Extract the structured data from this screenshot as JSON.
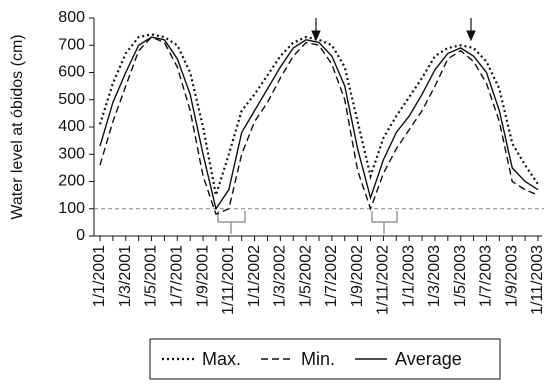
{
  "chart_data": {
    "type": "line",
    "y_label": "Water level at óbidos (cm)",
    "categories": [
      "1/1/2001",
      null,
      "1/3/2001",
      null,
      "1/5/2001",
      null,
      "1/7/2001",
      null,
      "1/9/2001",
      null,
      "1/11/2001",
      null,
      "1/1/2002",
      null,
      "1/3/2002",
      null,
      "1/5/2002",
      null,
      "1/7/2002",
      null,
      "1/9/2002",
      null,
      "1/11/2002",
      null,
      "1/1/2003",
      null,
      "1/3/2003",
      null,
      "1/5/2003",
      null,
      "1/7/2003",
      null,
      "1/9/2003",
      null,
      "1/11/2003"
    ],
    "series": [
      {
        "name": "Max.",
        "color": "#111111",
        "line_style": "dotted",
        "values": [
          410,
          560,
          670,
          730,
          740,
          730,
          700,
          600,
          400,
          150,
          300,
          460,
          520,
          590,
          660,
          710,
          730,
          720,
          700,
          620,
          420,
          220,
          360,
          440,
          510,
          580,
          660,
          690,
          700,
          690,
          640,
          540,
          340,
          260,
          190
        ]
      },
      {
        "name": "Min.",
        "color": "#111111",
        "line_style": "dashed",
        "values": [
          260,
          420,
          550,
          680,
          730,
          710,
          620,
          460,
          220,
          80,
          100,
          300,
          420,
          490,
          580,
          660,
          710,
          700,
          630,
          500,
          240,
          100,
          230,
          320,
          390,
          460,
          550,
          650,
          680,
          640,
          560,
          420,
          200,
          170,
          150
        ]
      },
      {
        "name": "Average",
        "color": "#111111",
        "line_style": "solid",
        "values": [
          330,
          490,
          600,
          700,
          730,
          720,
          650,
          520,
          300,
          100,
          170,
          380,
          460,
          540,
          620,
          690,
          720,
          710,
          660,
          550,
          320,
          140,
          280,
          380,
          440,
          520,
          610,
          670,
          690,
          660,
          600,
          460,
          250,
          200,
          170
        ]
      }
    ],
    "reference_line": 100,
    "ylim": [
      0,
      800
    ],
    "yticks": [
      0,
      100,
      200,
      300,
      400,
      500,
      600,
      700,
      800
    ],
    "legend": "bottom"
  }
}
